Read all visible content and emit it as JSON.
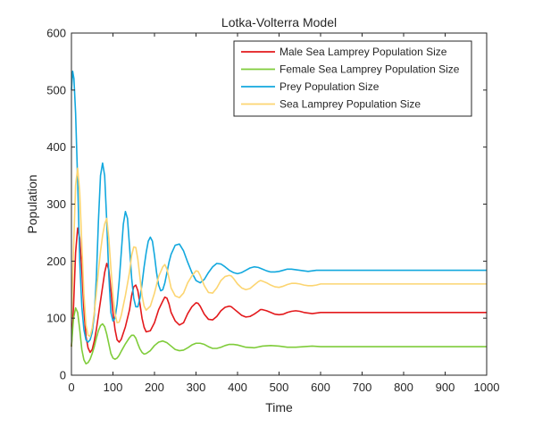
{
  "chart_data": {
    "type": "line",
    "title": "Lotka-Volterra Model",
    "xlabel": "Time",
    "ylabel": "Population",
    "xlim": [
      0,
      1000
    ],
    "ylim": [
      0,
      600
    ],
    "xticks": [
      0,
      100,
      200,
      300,
      400,
      500,
      600,
      700,
      800,
      900,
      1000
    ],
    "yticks": [
      0,
      100,
      200,
      300,
      400,
      500,
      600
    ],
    "grid": false,
    "legend_position": "top-right",
    "series": [
      {
        "name": "Male Sea Lamprey Population Size",
        "color": "#e3191c",
        "x": [
          0,
          5,
          10,
          15,
          20,
          25,
          30,
          35,
          40,
          45,
          50,
          55,
          60,
          65,
          70,
          75,
          80,
          85,
          90,
          95,
          100,
          105,
          110,
          115,
          120,
          130,
          140,
          145,
          150,
          155,
          160,
          165,
          170,
          175,
          180,
          190,
          200,
          210,
          220,
          225,
          230,
          235,
          240,
          250,
          260,
          270,
          280,
          290,
          300,
          305,
          310,
          315,
          320,
          330,
          340,
          350,
          360,
          370,
          380,
          385,
          390,
          400,
          410,
          420,
          430,
          440,
          450,
          455,
          460,
          470,
          480,
          490,
          500,
          510,
          520,
          530,
          540,
          550,
          560,
          570,
          580,
          590,
          600,
          620,
          640,
          660,
          680,
          700,
          750,
          800,
          850,
          900,
          950,
          1000
        ],
        "y": [
          50,
          120,
          215,
          258,
          240,
          185,
          115,
          68,
          48,
          40,
          45,
          60,
          80,
          105,
          130,
          155,
          180,
          196,
          185,
          150,
          110,
          80,
          62,
          58,
          63,
          85,
          115,
          140,
          155,
          158,
          148,
          125,
          100,
          84,
          76,
          78,
          92,
          115,
          130,
          137,
          135,
          125,
          110,
          95,
          88,
          92,
          108,
          120,
          127,
          126,
          121,
          114,
          107,
          98,
          97,
          103,
          113,
          119,
          121,
          120,
          117,
          111,
          105,
          102,
          103,
          107,
          112,
          115,
          115,
          113,
          110,
          107,
          106,
          107,
          110,
          112,
          113,
          112,
          110,
          109,
          108,
          109,
          110,
          110,
          110,
          110,
          110,
          110,
          110,
          110,
          110,
          110,
          110,
          110
        ]
      },
      {
        "name": "Female Sea Lamprey Population Size",
        "color": "#7fcc3a",
        "x": [
          0,
          5,
          10,
          15,
          20,
          25,
          30,
          35,
          40,
          45,
          50,
          55,
          60,
          65,
          70,
          75,
          80,
          85,
          90,
          95,
          100,
          105,
          110,
          115,
          120,
          130,
          140,
          145,
          150,
          155,
          160,
          165,
          170,
          175,
          180,
          190,
          200,
          210,
          220,
          230,
          240,
          250,
          260,
          270,
          280,
          290,
          300,
          310,
          320,
          330,
          340,
          350,
          360,
          370,
          380,
          390,
          400,
          420,
          440,
          460,
          480,
          500,
          520,
          540,
          560,
          580,
          600,
          650,
          700,
          800,
          900,
          1000
        ],
        "y": [
          50,
          100,
          118,
          110,
          80,
          45,
          27,
          20,
          22,
          28,
          38,
          50,
          65,
          78,
          87,
          90,
          85,
          72,
          55,
          38,
          30,
          28,
          30,
          35,
          42,
          55,
          66,
          70,
          70,
          65,
          55,
          46,
          40,
          37,
          38,
          43,
          52,
          58,
          60,
          57,
          51,
          45,
          43,
          44,
          48,
          53,
          56,
          56,
          54,
          50,
          47,
          47,
          49,
          52,
          54,
          54,
          53,
          49,
          48,
          51,
          52,
          51,
          49,
          49,
          50,
          51,
          50,
          50,
          50,
          50,
          50,
          50
        ]
      },
      {
        "name": "Prey Population Size",
        "color": "#12a8de",
        "x": [
          0,
          3,
          6,
          10,
          15,
          20,
          25,
          30,
          35,
          40,
          45,
          50,
          55,
          60,
          65,
          70,
          75,
          80,
          85,
          90,
          95,
          100,
          105,
          110,
          115,
          120,
          125,
          130,
          135,
          140,
          145,
          150,
          155,
          160,
          165,
          170,
          175,
          180,
          185,
          190,
          195,
          200,
          205,
          210,
          215,
          220,
          225,
          230,
          235,
          240,
          250,
          260,
          270,
          280,
          290,
          300,
          310,
          320,
          330,
          340,
          350,
          360,
          370,
          380,
          390,
          400,
          410,
          420,
          430,
          440,
          450,
          460,
          470,
          480,
          490,
          500,
          510,
          520,
          530,
          540,
          550,
          560,
          570,
          580,
          590,
          600,
          620,
          640,
          660,
          680,
          700,
          750,
          800,
          850,
          900,
          950,
          1000
        ],
        "y": [
          500,
          533,
          520,
          460,
          340,
          200,
          120,
          80,
          62,
          58,
          62,
          75,
          105,
          170,
          270,
          350,
          372,
          350,
          270,
          175,
          110,
          95,
          100,
          125,
          165,
          215,
          265,
          287,
          275,
          225,
          170,
          135,
          120,
          120,
          135,
          160,
          190,
          215,
          235,
          242,
          235,
          210,
          180,
          158,
          148,
          150,
          162,
          180,
          198,
          212,
          228,
          230,
          218,
          198,
          180,
          166,
          162,
          168,
          180,
          190,
          196,
          195,
          190,
          184,
          180,
          178,
          180,
          184,
          188,
          190,
          189,
          186,
          183,
          181,
          181,
          182,
          184,
          186,
          186,
          185,
          184,
          183,
          182,
          183,
          184,
          184,
          184,
          184,
          184,
          184,
          184,
          184,
          184,
          184,
          184,
          184,
          184
        ]
      },
      {
        "name": "Sea Lamprey Population Size",
        "color": "#fcd571",
        "x": [
          0,
          5,
          10,
          15,
          20,
          25,
          30,
          35,
          40,
          45,
          50,
          55,
          60,
          65,
          70,
          75,
          80,
          85,
          90,
          95,
          100,
          105,
          110,
          115,
          120,
          130,
          140,
          145,
          150,
          155,
          160,
          165,
          170,
          175,
          180,
          190,
          200,
          210,
          220,
          225,
          230,
          235,
          240,
          250,
          260,
          270,
          280,
          290,
          300,
          305,
          310,
          315,
          320,
          330,
          340,
          350,
          360,
          370,
          380,
          385,
          390,
          400,
          410,
          420,
          430,
          440,
          450,
          455,
          460,
          470,
          480,
          490,
          500,
          510,
          520,
          530,
          540,
          550,
          560,
          570,
          580,
          590,
          600,
          620,
          640,
          660,
          680,
          700,
          750,
          800,
          850,
          900,
          950,
          1000
        ],
        "y": [
          100,
          220,
          333,
          363,
          320,
          230,
          142,
          88,
          70,
          68,
          83,
          110,
          145,
          183,
          217,
          245,
          265,
          275,
          240,
          188,
          140,
          108,
          92,
          93,
          105,
          140,
          181,
          210,
          225,
          224,
          203,
          171,
          140,
          121,
          114,
          121,
          144,
          173,
          190,
          194,
          186,
          170,
          153,
          139,
          136,
          144,
          162,
          174,
          183,
          182,
          175,
          166,
          157,
          145,
          144,
          153,
          166,
          173,
          175,
          174,
          170,
          160,
          153,
          150,
          152,
          158,
          164,
          166,
          165,
          162,
          158,
          155,
          154,
          156,
          159,
          161,
          161,
          160,
          158,
          157,
          157,
          158,
          160,
          160,
          160,
          160,
          160,
          160,
          160,
          160,
          160,
          160,
          160,
          160
        ]
      }
    ]
  }
}
